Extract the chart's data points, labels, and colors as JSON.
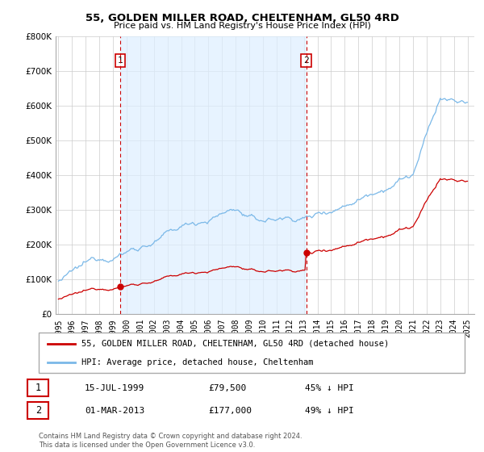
{
  "title": "55, GOLDEN MILLER ROAD, CHELTENHAM, GL50 4RD",
  "subtitle": "Price paid vs. HM Land Registry's House Price Index (HPI)",
  "legend_label_red": "55, GOLDEN MILLER ROAD, CHELTENHAM, GL50 4RD (detached house)",
  "legend_label_blue": "HPI: Average price, detached house, Cheltenham",
  "annotation1_label": "1",
  "annotation1_date": "15-JUL-1999",
  "annotation1_price": "£79,500",
  "annotation1_hpi": "45% ↓ HPI",
  "annotation2_label": "2",
  "annotation2_date": "01-MAR-2013",
  "annotation2_price": "£177,000",
  "annotation2_hpi": "49% ↓ HPI",
  "footnote": "Contains HM Land Registry data © Crown copyright and database right 2024.\nThis data is licensed under the Open Government Licence v3.0.",
  "sale1_year": 1999.54,
  "sale1_price": 79500,
  "sale2_year": 2013.17,
  "sale2_price": 177000,
  "hpi_color": "#7ab8e8",
  "sale_color": "#cc0000",
  "shade_color": "#ddeeff",
  "dashed_vline_color": "#cc0000",
  "background_color": "#ffffff",
  "grid_color": "#cccccc",
  "ylim": [
    0,
    800000
  ],
  "xlim_start": 1994.8,
  "xlim_end": 2025.5
}
